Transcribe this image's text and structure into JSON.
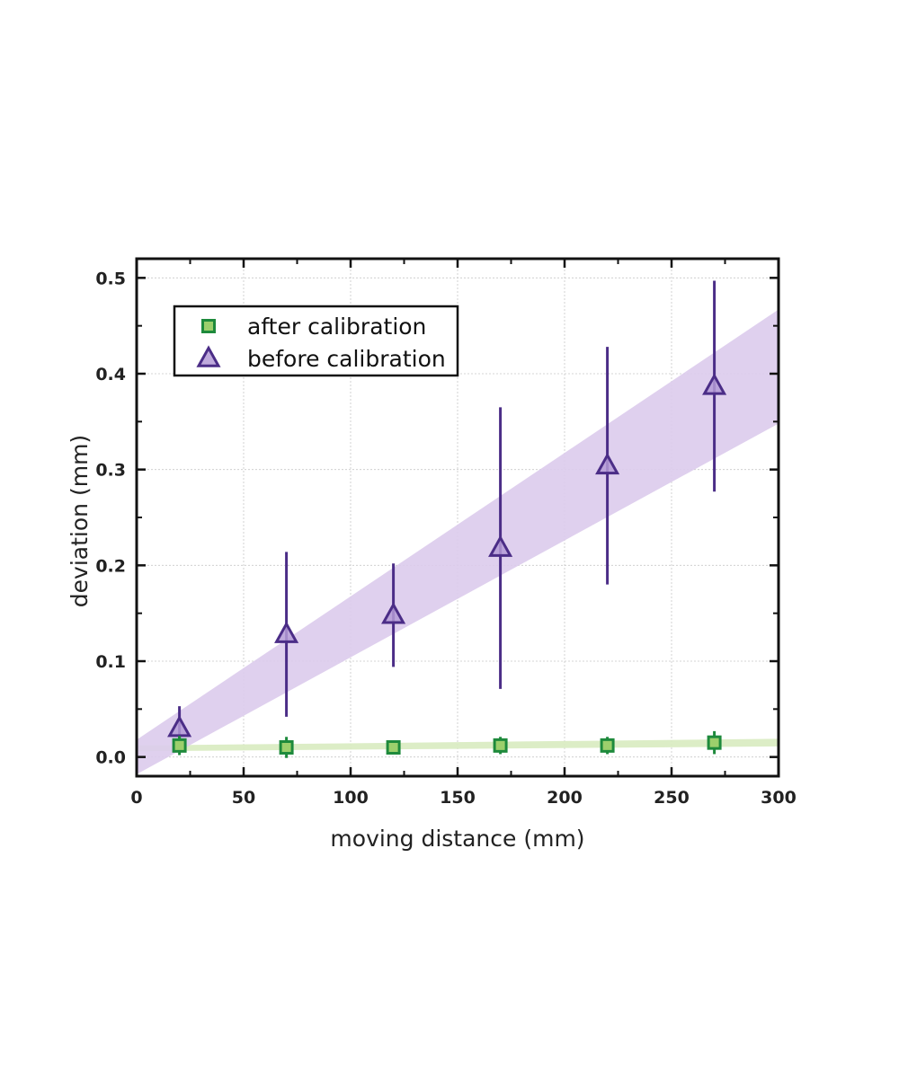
{
  "chart_data": {
    "type": "scatter",
    "xlabel": "moving distance (mm)",
    "ylabel": "deviation (mm)",
    "xlim": [
      0,
      300
    ],
    "ylim": [
      -0.02,
      0.52
    ],
    "x_ticks": [
      "0",
      "50",
      "100",
      "150",
      "200",
      "250",
      "300"
    ],
    "y_ticks": [
      "0.0",
      "0.1",
      "0.2",
      "0.3",
      "0.4",
      "0.5"
    ],
    "grid": true,
    "legend_position": "top-left",
    "series": [
      {
        "name": "after calibration",
        "marker": "square",
        "color": "#1e8a3c",
        "fill": "#9ccf6c",
        "points": [
          {
            "x": 20,
            "y": 0.012,
            "err": 0.01
          },
          {
            "x": 70,
            "y": 0.01,
            "err": 0.011
          },
          {
            "x": 120,
            "y": 0.01,
            "err": 0.006
          },
          {
            "x": 170,
            "y": 0.012,
            "err": 0.009
          },
          {
            "x": 220,
            "y": 0.012,
            "err": 0.009
          },
          {
            "x": 270,
            "y": 0.015,
            "err": 0.012
          }
        ],
        "band": {
          "x": [
            0,
            300
          ],
          "lower": [
            0.006,
            0.011
          ],
          "upper": [
            0.012,
            0.019
          ],
          "color": "#d8ebc0"
        }
      },
      {
        "name": "before calibration",
        "marker": "triangle",
        "color": "#4b2d87",
        "fill": "#b49bd6",
        "points": [
          {
            "x": 20,
            "y": 0.03,
            "err": 0.023
          },
          {
            "x": 70,
            "y": 0.128,
            "err": 0.086
          },
          {
            "x": 120,
            "y": 0.148,
            "err": 0.054
          },
          {
            "x": 170,
            "y": 0.218,
            "err": 0.147
          },
          {
            "x": 220,
            "y": 0.304,
            "err": 0.124
          },
          {
            "x": 270,
            "y": 0.387,
            "err": 0.11
          }
        ],
        "band": {
          "x": [
            0,
            300
          ],
          "lower": [
            -0.018,
            0.348
          ],
          "upper": [
            0.018,
            0.467
          ],
          "color": "#dccbec"
        }
      }
    ]
  }
}
